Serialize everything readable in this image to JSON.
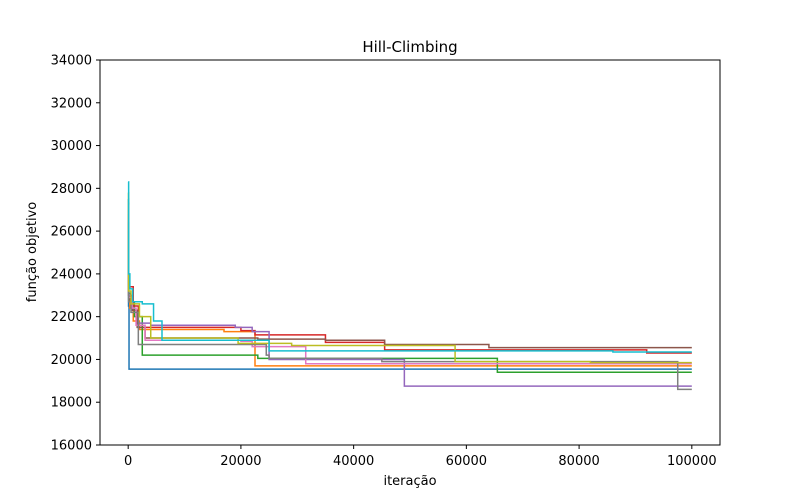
{
  "chart_data": {
    "type": "line",
    "title": "Hill-Climbing",
    "xlabel": "iteração",
    "ylabel": "função objetivo",
    "xlim": [
      -5000,
      105000
    ],
    "ylim": [
      16000,
      34000
    ],
    "xticks": [
      0,
      20000,
      40000,
      60000,
      80000,
      100000
    ],
    "yticks": [
      16000,
      18000,
      20000,
      22000,
      24000,
      26000,
      28000,
      30000,
      32000,
      34000
    ],
    "grid": false,
    "step": "post",
    "series": [
      {
        "color": "#1f77b4",
        "points": [
          [
            0,
            27500
          ],
          [
            60,
            22500
          ],
          [
            150,
            19550
          ],
          [
            100000,
            19550
          ]
        ]
      },
      {
        "color": "#ff7f0e",
        "points": [
          [
            0,
            27000
          ],
          [
            80,
            23000
          ],
          [
            300,
            22400
          ],
          [
            900,
            21800
          ],
          [
            2000,
            21400
          ],
          [
            9000,
            21400
          ],
          [
            17000,
            21300
          ],
          [
            22500,
            19700
          ],
          [
            31000,
            19700
          ],
          [
            100000,
            19700
          ]
        ]
      },
      {
        "color": "#2ca02c",
        "points": [
          [
            0,
            27300
          ],
          [
            100,
            23100
          ],
          [
            400,
            22700
          ],
          [
            1100,
            22000
          ],
          [
            2500,
            20200
          ],
          [
            22000,
            20200
          ],
          [
            23000,
            20050
          ],
          [
            65500,
            19400
          ],
          [
            100000,
            19400
          ]
        ]
      },
      {
        "color": "#d62728",
        "points": [
          [
            0,
            26800
          ],
          [
            90,
            23400
          ],
          [
            900,
            22500
          ],
          [
            1800,
            21500
          ],
          [
            20000,
            21350
          ],
          [
            22500,
            21150
          ],
          [
            35000,
            20800
          ],
          [
            45500,
            20450
          ],
          [
            92000,
            20300
          ],
          [
            100000,
            20300
          ]
        ]
      },
      {
        "color": "#9467bd",
        "points": [
          [
            0,
            26500
          ],
          [
            70,
            23000
          ],
          [
            600,
            22300
          ],
          [
            1500,
            21700
          ],
          [
            4000,
            21600
          ],
          [
            19000,
            21500
          ],
          [
            22000,
            21300
          ],
          [
            25000,
            20000
          ],
          [
            49000,
            18750
          ],
          [
            100000,
            18750
          ]
        ]
      },
      {
        "color": "#8c564b",
        "points": [
          [
            0,
            26000
          ],
          [
            90,
            22800
          ],
          [
            800,
            22300
          ],
          [
            1600,
            21500
          ],
          [
            3000,
            21000
          ],
          [
            23000,
            20950
          ],
          [
            35000,
            20900
          ],
          [
            45500,
            20700
          ],
          [
            64000,
            20550
          ],
          [
            100000,
            20550
          ]
        ]
      },
      {
        "color": "#e377c2",
        "points": [
          [
            0,
            27200
          ],
          [
            100,
            22900
          ],
          [
            700,
            22400
          ],
          [
            1400,
            21600
          ],
          [
            3000,
            20900
          ],
          [
            20000,
            20850
          ],
          [
            22000,
            20600
          ],
          [
            31500,
            19800
          ],
          [
            100000,
            19800
          ]
        ]
      },
      {
        "color": "#7f7f7f",
        "points": [
          [
            0,
            26400
          ],
          [
            80,
            22700
          ],
          [
            500,
            22200
          ],
          [
            1800,
            20700
          ],
          [
            24500,
            20200
          ],
          [
            25000,
            20050
          ],
          [
            45000,
            19900
          ],
          [
            86000,
            19900
          ],
          [
            97500,
            18600
          ],
          [
            100000,
            18600
          ]
        ]
      },
      {
        "color": "#bcbd22",
        "points": [
          [
            0,
            27800
          ],
          [
            60,
            23200
          ],
          [
            500,
            22600
          ],
          [
            2000,
            22000
          ],
          [
            4000,
            21000
          ],
          [
            19500,
            20750
          ],
          [
            29000,
            20650
          ],
          [
            58000,
            19900
          ],
          [
            82000,
            19850
          ],
          [
            100000,
            19850
          ]
        ]
      },
      {
        "color": "#17becf",
        "points": [
          [
            0,
            28300
          ],
          [
            80,
            24000
          ],
          [
            300,
            23300
          ],
          [
            800,
            22700
          ],
          [
            2500,
            22600
          ],
          [
            4500,
            21800
          ],
          [
            6000,
            20900
          ],
          [
            25000,
            20400
          ],
          [
            50000,
            20400
          ],
          [
            86000,
            20350
          ],
          [
            100000,
            20350
          ]
        ]
      }
    ]
  }
}
